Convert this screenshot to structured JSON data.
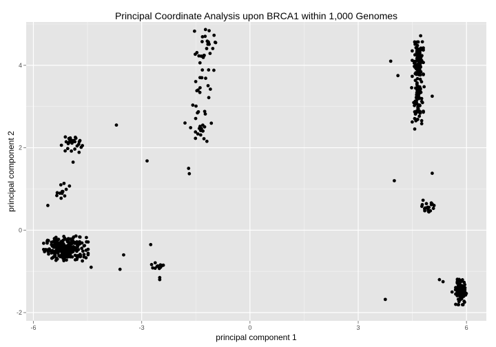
{
  "chart_data": {
    "type": "scatter",
    "title": "Principal Coordinate Analysis upon BRCA1 within 1,000 Genomes",
    "xlabel": "principal component 1",
    "ylabel": "principal component 2",
    "xlim": [
      -6.2,
      6.55
    ],
    "ylim": [
      -2.2,
      5.05
    ],
    "x_ticks": [
      -6,
      -3,
      0,
      3,
      6
    ],
    "y_ticks": [
      -2,
      0,
      2,
      4
    ],
    "x_tick_labels": [
      "-6",
      "-3",
      "0",
      "3",
      "6"
    ],
    "y_tick_labels": [
      "-2",
      "0",
      "2",
      "4"
    ],
    "grid": true,
    "background_color": "#e5e5e5",
    "point_color": "#000000",
    "clusters": [
      {
        "center": [
          -5.1,
          -0.45
        ],
        "spread": [
          0.28,
          0.14
        ],
        "count": 230
      },
      {
        "center": [
          -4.95,
          2.1
        ],
        "spread": [
          0.14,
          0.11
        ],
        "count": 28
      },
      {
        "center": [
          -5.2,
          0.95
        ],
        "spread": [
          0.1,
          0.12
        ],
        "count": 12
      },
      {
        "center": [
          -1.25,
          4.5
        ],
        "spread": [
          0.13,
          0.2
        ],
        "count": 24
      },
      {
        "center": [
          -1.3,
          3.45
        ],
        "spread": [
          0.14,
          0.22
        ],
        "count": 14
      },
      {
        "center": [
          -1.4,
          2.55
        ],
        "spread": [
          0.15,
          0.22
        ],
        "count": 22
      },
      {
        "center": [
          -2.6,
          -0.88
        ],
        "spread": [
          0.12,
          0.05
        ],
        "count": 10
      },
      {
        "center": [
          4.65,
          4.1
        ],
        "spread": [
          0.07,
          0.28
        ],
        "count": 95
      },
      {
        "center": [
          4.65,
          3.4
        ],
        "spread": [
          0.08,
          0.25
        ],
        "count": 45
      },
      {
        "center": [
          4.65,
          2.85
        ],
        "spread": [
          0.07,
          0.18
        ],
        "count": 30
      },
      {
        "center": [
          4.95,
          0.55
        ],
        "spread": [
          0.09,
          0.08
        ],
        "count": 20
      },
      {
        "center": [
          5.85,
          -1.5
        ],
        "spread": [
          0.07,
          0.14
        ],
        "count": 110
      }
    ],
    "points": [
      [
        -3.7,
        2.55
      ],
      [
        -2.85,
        1.68
      ],
      [
        -5.6,
        0.6
      ],
      [
        -4.9,
        1.65
      ],
      [
        -1.7,
        1.5
      ],
      [
        -1.68,
        1.37
      ],
      [
        -4.4,
        -0.9
      ],
      [
        -4.6,
        -0.65
      ],
      [
        -3.6,
        -0.95
      ],
      [
        -3.5,
        -0.6
      ],
      [
        -2.75,
        -0.35
      ],
      [
        -2.5,
        -1.15
      ],
      [
        -2.5,
        -1.2
      ],
      [
        -2.4,
        -0.85
      ],
      [
        -1.8,
        2.6
      ],
      [
        -1.0,
        3.88
      ],
      [
        -0.95,
        4.55
      ],
      [
        4.1,
        3.75
      ],
      [
        3.9,
        4.1
      ],
      [
        5.05,
        3.25
      ],
      [
        4.0,
        1.2
      ],
      [
        5.05,
        1.38
      ],
      [
        5.35,
        -1.25
      ],
      [
        5.25,
        -1.2
      ],
      [
        3.75,
        -1.68
      ],
      [
        5.7,
        -1.55
      ],
      [
        5.6,
        -1.5
      ],
      [
        5.7,
        -1.8
      ]
    ]
  }
}
